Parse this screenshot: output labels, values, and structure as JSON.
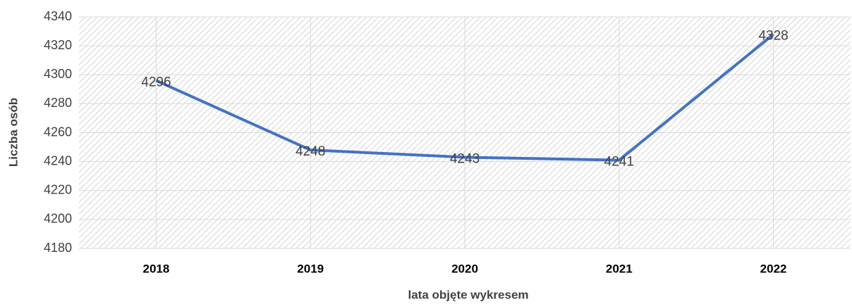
{
  "chart_data": {
    "type": "line",
    "categories": [
      "2018",
      "2019",
      "2020",
      "2021",
      "2022"
    ],
    "series": [
      {
        "name": "Liczba osób",
        "color": "#4472c4",
        "values": [
          4296,
          4248,
          4243,
          4241,
          4328
        ]
      }
    ],
    "xlabel": "lata objęte wykresem",
    "ylabel": "Liczba osób",
    "ylim": [
      4180,
      4340
    ],
    "yticks": [
      4180,
      4200,
      4220,
      4240,
      4260,
      4280,
      4300,
      4320,
      4340
    ],
    "grid": true
  }
}
